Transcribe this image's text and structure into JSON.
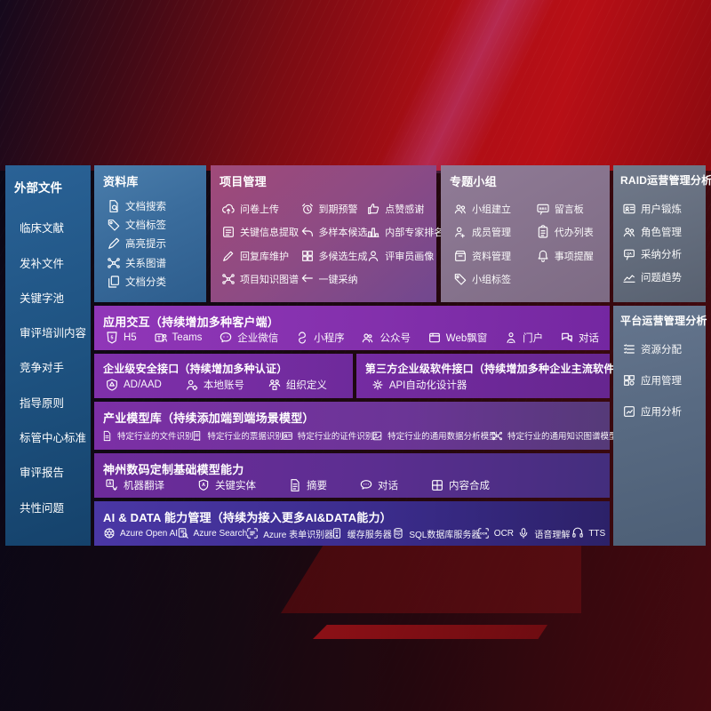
{
  "colors": {
    "background_red": "#ad0e15",
    "background_dark": "#0b0716",
    "sidebar_blue": "#1d517f",
    "library_blue": "#3a6c9c",
    "project_magenta": "#8d4b84",
    "topic_mauve": "#7d6b84",
    "raid_slate": "#626b7b",
    "platform_slate": "#586a82",
    "band_purple": "#8330ac",
    "band_indigo": "#3b2c8c"
  },
  "sidebar": {
    "title": "外部文件",
    "items": [
      "临床文献",
      "发补文件",
      "关键字池",
      "审评培训内容",
      "竞争对手",
      "指导原则",
      "标管中心标准",
      "审评报告",
      "共性问题"
    ]
  },
  "library_panel": {
    "title": "资料库",
    "items": [
      {
        "icon": "doc-search-icon",
        "label": "文档搜索"
      },
      {
        "icon": "tag-icon",
        "label": "文档标签"
      },
      {
        "icon": "highlight-pen-icon",
        "label": "高亮提示"
      },
      {
        "icon": "graph-icon",
        "label": "关系图谱"
      },
      {
        "icon": "doc-copy-icon",
        "label": "文档分类"
      }
    ]
  },
  "project_panel": {
    "title": "项目管理",
    "items": [
      {
        "icon": "cloud-upload-icon",
        "label": "问卷上传"
      },
      {
        "icon": "alarm-icon",
        "label": "到期预警"
      },
      {
        "icon": "thumbs-up-icon",
        "label": "点赞感谢"
      },
      {
        "icon": "doc-extract-icon",
        "label": "关键信息提取"
      },
      {
        "icon": "reply-arrow-icon",
        "label": "多样本候选"
      },
      {
        "icon": "ranking-icon",
        "label": "内部专家排名"
      },
      {
        "icon": "pen-icon",
        "label": "回复库维护"
      },
      {
        "icon": "puzzle-icon",
        "label": "多候选生成"
      },
      {
        "icon": "person-icon",
        "label": "评审员画像"
      },
      {
        "icon": "graph-icon",
        "label": "项目知识图谱"
      },
      {
        "icon": "adopt-arrow-icon",
        "label": "一键采纳"
      }
    ]
  },
  "topic_panel": {
    "title": "专题小组",
    "items": [
      {
        "icon": "people-icon",
        "label": "小组建立"
      },
      {
        "icon": "bbs-icon",
        "label": "留言板"
      },
      {
        "icon": "person-add-icon",
        "label": "成员管理"
      },
      {
        "icon": "clipboard-icon",
        "label": "代办列表"
      },
      {
        "icon": "archive-icon",
        "label": "资料管理"
      },
      {
        "icon": "bell-icon",
        "label": "事项提醒"
      },
      {
        "icon": "tag-icon",
        "label": "小组标签"
      }
    ]
  },
  "raid_panel": {
    "title": "RAID运营管理分析",
    "items": [
      {
        "icon": "id-card-icon",
        "label": "用户锻炼"
      },
      {
        "icon": "people-icon",
        "label": "角色管理"
      },
      {
        "icon": "chat-analyze-icon",
        "label": "采纳分析"
      },
      {
        "icon": "trend-icon",
        "label": "问题趋势"
      }
    ]
  },
  "platform_panel": {
    "title": "平台运营管理分析",
    "items": [
      {
        "icon": "list-icon",
        "label": "资源分配"
      },
      {
        "icon": "app-grid-icon",
        "label": "应用管理"
      },
      {
        "icon": "app-analyze-icon",
        "label": "应用分析"
      }
    ]
  },
  "interaction_band": {
    "title": "应用交互（持续增加多种客户端）",
    "items": [
      {
        "icon": "h5-icon",
        "label": "H5"
      },
      {
        "icon": "teams-icon",
        "label": "Teams"
      },
      {
        "icon": "wechat-work-icon",
        "label": "企业微信"
      },
      {
        "icon": "miniprogram-icon",
        "label": "小程序"
      },
      {
        "icon": "official-account-icon",
        "label": "公众号"
      },
      {
        "icon": "web-window-icon",
        "label": "Web飘窗"
      },
      {
        "icon": "portal-icon",
        "label": "门户"
      },
      {
        "icon": "dialog-icon",
        "label": "对话"
      }
    ]
  },
  "security_band": {
    "title": "企业级安全接口（持续增加多种认证）",
    "items": [
      {
        "icon": "ad-shield-icon",
        "label": "AD/AAD"
      },
      {
        "icon": "local-account-icon",
        "label": "本地账号"
      },
      {
        "icon": "org-icon",
        "label": "组织定义"
      }
    ]
  },
  "thirdparty_band": {
    "title": "第三方企业级软件接口（持续增加多种企业主流软件接口）",
    "items": [
      {
        "icon": "api-gear-icon",
        "label": "API自动化设计器"
      }
    ]
  },
  "industry_band": {
    "title": "产业模型库（持续添加端到端场景模型）",
    "items": [
      {
        "icon": "doc-recognize-icon",
        "label": "特定行业的文件识别"
      },
      {
        "icon": "receipt-icon",
        "label": "特定行业的票据识别"
      },
      {
        "icon": "id-card-icon",
        "label": "特定行业的证件识别"
      },
      {
        "icon": "data-model-icon",
        "label": "特定行业的通用数据分析模型"
      },
      {
        "icon": "knowledge-graph-icon",
        "label": "特定行业的通用知识图谱模型"
      }
    ]
  },
  "digitalchina_band": {
    "title": "神州数码定制基础模型能力",
    "items": [
      {
        "icon": "translate-icon",
        "label": "机器翻译"
      },
      {
        "icon": "entity-icon",
        "label": "关键实体"
      },
      {
        "icon": "summary-icon",
        "label": "摘要"
      },
      {
        "icon": "dialog-bubble-icon",
        "label": "对话"
      },
      {
        "icon": "compose-icon",
        "label": "内容合成"
      }
    ]
  },
  "aidata_band": {
    "title": "AI & DATA 能力管理（持续为接入更多AI&DATA能力）",
    "items": [
      {
        "icon": "openai-icon",
        "label": "Azure Open AI"
      },
      {
        "icon": "azure-search-icon",
        "label": "Azure Search"
      },
      {
        "icon": "form-recognizer-icon",
        "label": "Azure 表单识别器"
      },
      {
        "icon": "cache-server-icon",
        "label": "缓存服务器"
      },
      {
        "icon": "sql-db-icon",
        "label": "SQL数据库服务器"
      },
      {
        "icon": "ocr-icon",
        "label": "OCR"
      },
      {
        "icon": "speech-icon",
        "label": "语音理解"
      },
      {
        "icon": "tts-icon",
        "label": "TTS"
      }
    ]
  }
}
